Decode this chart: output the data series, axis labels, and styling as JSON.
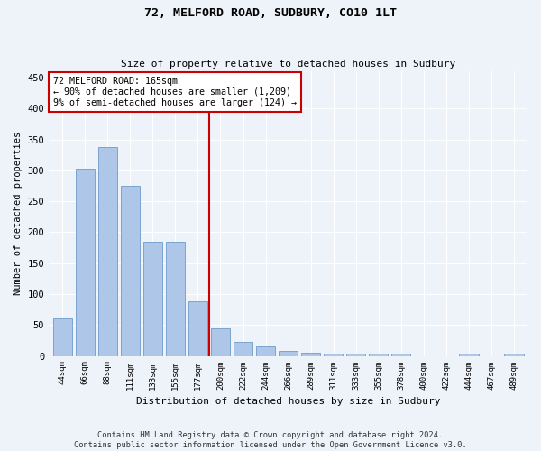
{
  "title1": "72, MELFORD ROAD, SUDBURY, CO10 1LT",
  "title2": "Size of property relative to detached houses in Sudbury",
  "xlabel": "Distribution of detached houses by size in Sudbury",
  "ylabel": "Number of detached properties",
  "categories": [
    "44sqm",
    "66sqm",
    "88sqm",
    "111sqm",
    "133sqm",
    "155sqm",
    "177sqm",
    "200sqm",
    "222sqm",
    "244sqm",
    "266sqm",
    "289sqm",
    "311sqm",
    "333sqm",
    "355sqm",
    "378sqm",
    "400sqm",
    "422sqm",
    "444sqm",
    "467sqm",
    "489sqm"
  ],
  "values": [
    60,
    302,
    338,
    275,
    185,
    185,
    88,
    45,
    22,
    15,
    8,
    5,
    4,
    3,
    3,
    3,
    0,
    0,
    4,
    0,
    4
  ],
  "bar_color": "#aec6e8",
  "bar_edge_color": "#5a8fc2",
  "background_color": "#eef2f9",
  "grid_color": "#ffffff",
  "vline_x": 6.5,
  "vline_color": "#cc0000",
  "annotation_line1": "72 MELFORD ROAD: 165sqm",
  "annotation_line2": "← 90% of detached houses are smaller (1,209)",
  "annotation_line3": "9% of semi-detached houses are larger (124) →",
  "box_color": "#cc0000",
  "footer1": "Contains HM Land Registry data © Crown copyright and database right 2024.",
  "footer2": "Contains public sector information licensed under the Open Government Licence v3.0.",
  "ylim": [
    0,
    460
  ],
  "yticks": [
    0,
    50,
    100,
    150,
    200,
    250,
    300,
    350,
    400,
    450
  ]
}
